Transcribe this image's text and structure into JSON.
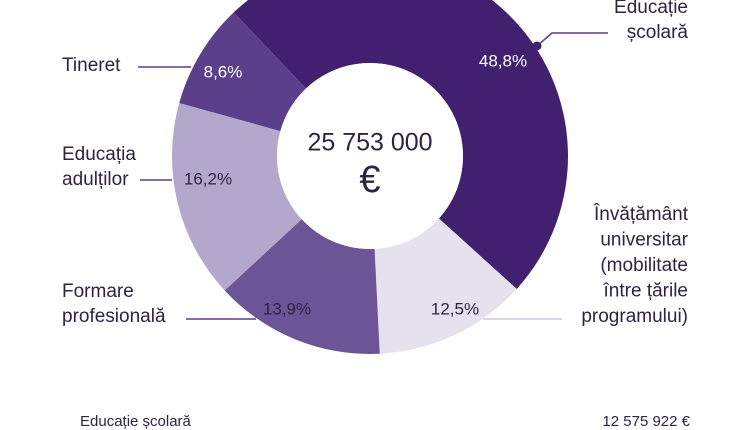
{
  "chart_data": {
    "type": "donut",
    "categories": [
      [
        "Educație",
        "școlară"
      ],
      [
        "Învățământ",
        "universitar",
        "(mobilitate",
        "între țările",
        "programului)"
      ],
      [
        "Formare",
        "profesională"
      ],
      [
        "Educația",
        "adulților"
      ],
      [
        "Tineret"
      ]
    ],
    "values": [
      48.8,
      12.5,
      13.9,
      16.2,
      8.6
    ],
    "value_labels": [
      "48,8%",
      "12,5%",
      "13,9%",
      "16,2%",
      "8,6%"
    ],
    "colors": [
      "#40206f",
      "#e5e1ef",
      "#6c5597",
      "#b3a8cc",
      "#5b3f8b"
    ],
    "center_label": [
      "25 753 000",
      "€"
    ]
  },
  "summary": {
    "label": "Educație școlară",
    "value": "12 575 922 €"
  }
}
